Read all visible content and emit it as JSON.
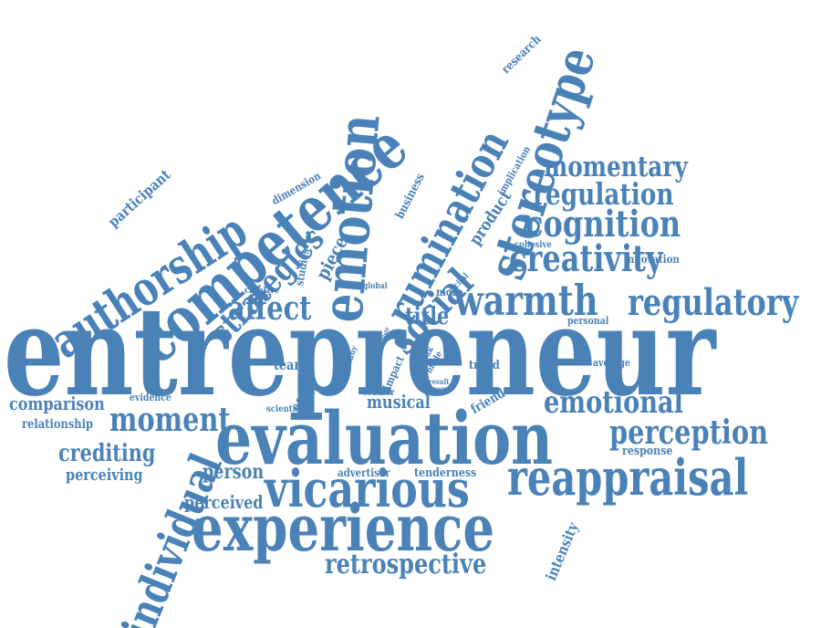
{
  "accent_color": "#4a82b8",
  "words": {
    "entrepreneur": "entrepreneur",
    "evaluation": "evaluation",
    "experience": "experience",
    "competence": "competence",
    "emotion": "emotion",
    "stereotype": "stereotype",
    "rumination": "rumination",
    "social": "social",
    "authorship": "authorship",
    "individual": "individual",
    "reappraisal": "reappraisal",
    "vicarious": "vicarious",
    "warmth": "warmth",
    "regulatory": "regulatory",
    "creativity": "creativity",
    "cognition": "cognition",
    "regulation": "regulation",
    "momentary": "momentary",
    "emotional": "emotional",
    "perception": "perception",
    "retrospective": "retrospective",
    "moment": "moment",
    "strategies": "strategies",
    "affect": "affect",
    "crediting": "crediting",
    "comparison": "comparison",
    "perceiving": "perceiving",
    "person": "person",
    "perceived": "perceived",
    "musical": "musical",
    "title": "title",
    "team": "team",
    "participant": "participant",
    "dimension": "dimension",
    "business": "business",
    "piece": "piece",
    "studies": "studies",
    "product": "product",
    "implication": "implication",
    "research": "research",
    "intensity": "intensity",
    "relationship": "relationship",
    "evidence": "evidence",
    "effect": "effect",
    "scientist": "scientist",
    "impact": "impact",
    "toddler": "toddler",
    "friend": "friend",
    "trend": "trend",
    "average": "average",
    "personal": "personal",
    "innovation": "innovation",
    "cohesive": "cohesive",
    "response": "response",
    "advertiser": "advertiser",
    "tenderness": "tenderness",
    "more": "more",
    "recital": "recital",
    "global": "global",
    "creative": "creative",
    "many": "many",
    "distr": "distr",
    "peak": "peak",
    "made": "made",
    "result": "result",
    "group": "group"
  }
}
